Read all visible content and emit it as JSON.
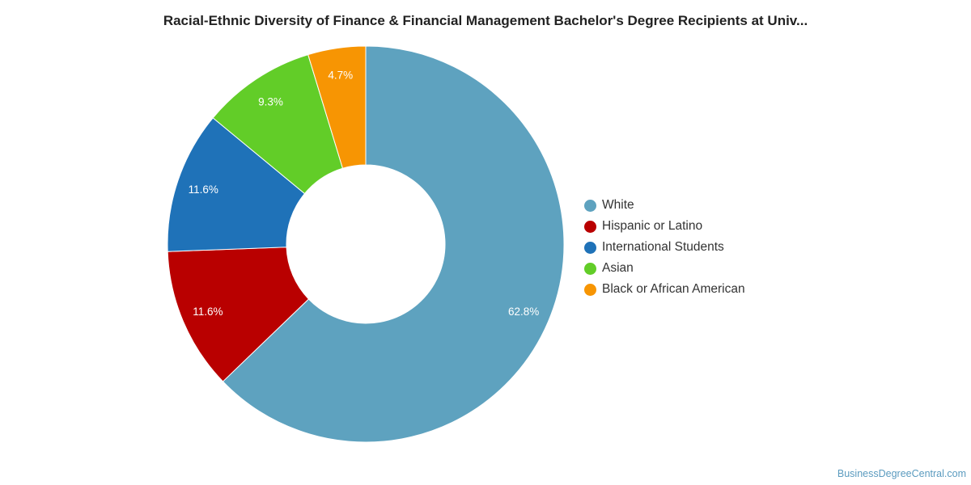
{
  "chart_data": {
    "type": "pie",
    "title": "Racial-Ethnic Diversity of Finance & Financial Management Bachelor's Degree Recipients at Univ...",
    "donut": true,
    "legend_position": "right",
    "slices": [
      {
        "label": "White",
        "value": 62.8,
        "display": "62.8%",
        "color": "#5ea2bf"
      },
      {
        "label": "Hispanic or Latino",
        "value": 11.6,
        "display": "11.6%",
        "color": "#b90000"
      },
      {
        "label": "International Students",
        "value": 11.6,
        "display": "11.6%",
        "color": "#1f72b8"
      },
      {
        "label": "Asian",
        "value": 9.3,
        "display": "9.3%",
        "color": "#62cd28"
      },
      {
        "label": "Black or African American",
        "value": 4.7,
        "display": "4.7%",
        "color": "#f79503"
      }
    ]
  },
  "watermark": "BusinessDegreeCentral.com"
}
